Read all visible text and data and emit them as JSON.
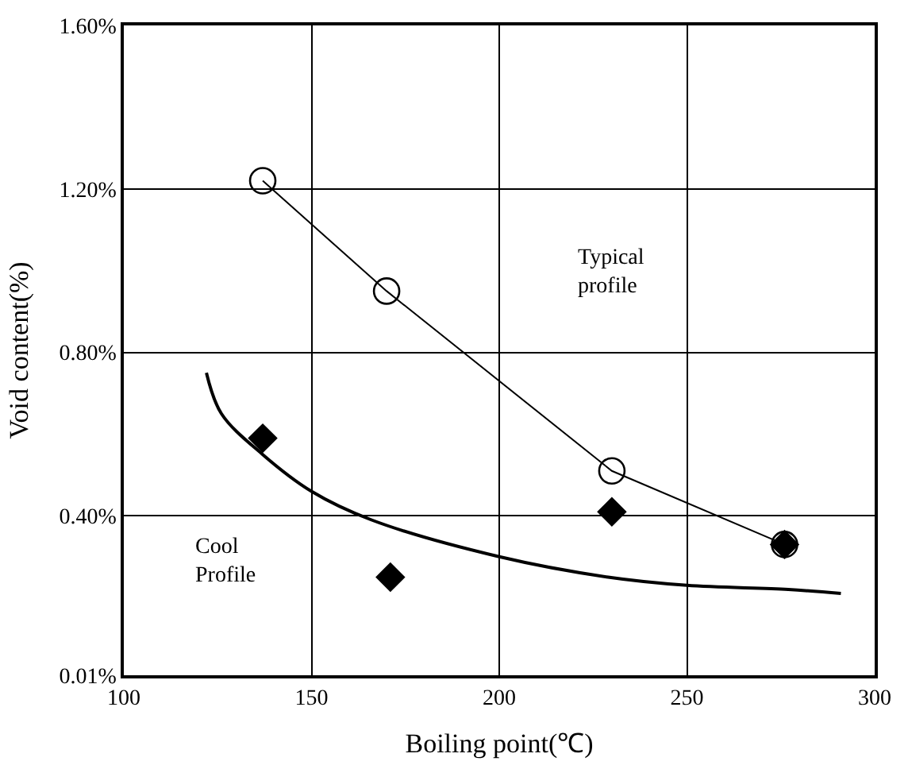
{
  "chart_data": {
    "type": "scatter",
    "xlabel": "Boiling point(℃)",
    "ylabel": "Void content(%)",
    "xlim": [
      100,
      300
    ],
    "xticks": [
      100,
      150,
      200,
      250,
      300
    ],
    "ylim": [
      0.01,
      1.6
    ],
    "yticks": [
      {
        "value": 0.01,
        "label": "0.01%"
      },
      {
        "value": 0.4,
        "label": "0.40%"
      },
      {
        "value": 0.8,
        "label": "0.80%"
      },
      {
        "value": 1.2,
        "label": "1.20%"
      },
      {
        "value": 1.6,
        "label": "1.60%"
      }
    ],
    "grid": true,
    "series": [
      {
        "type": "line",
        "marker": "circle",
        "color": "#000000",
        "x": [
          137,
          170,
          230,
          276
        ],
        "values": [
          1.22,
          0.95,
          0.51,
          0.33
        ]
      },
      {
        "type": "line",
        "marker": "none",
        "color": "#000000",
        "x": [
          122,
          126,
          137,
          150,
          166,
          200,
          229,
          250,
          277,
          291
        ],
        "values": [
          0.75,
          0.65,
          0.55,
          0.46,
          0.39,
          0.3,
          0.25,
          0.23,
          0.22,
          0.21
        ]
      },
      {
        "marker": "diamond",
        "color": "#000000",
        "x": [
          137,
          171,
          230,
          276
        ],
        "values": [
          0.59,
          0.25,
          0.41,
          0.33
        ]
      }
    ],
    "annotations": [
      "Typical\nprofile",
      "Cool\nProfile"
    ]
  }
}
